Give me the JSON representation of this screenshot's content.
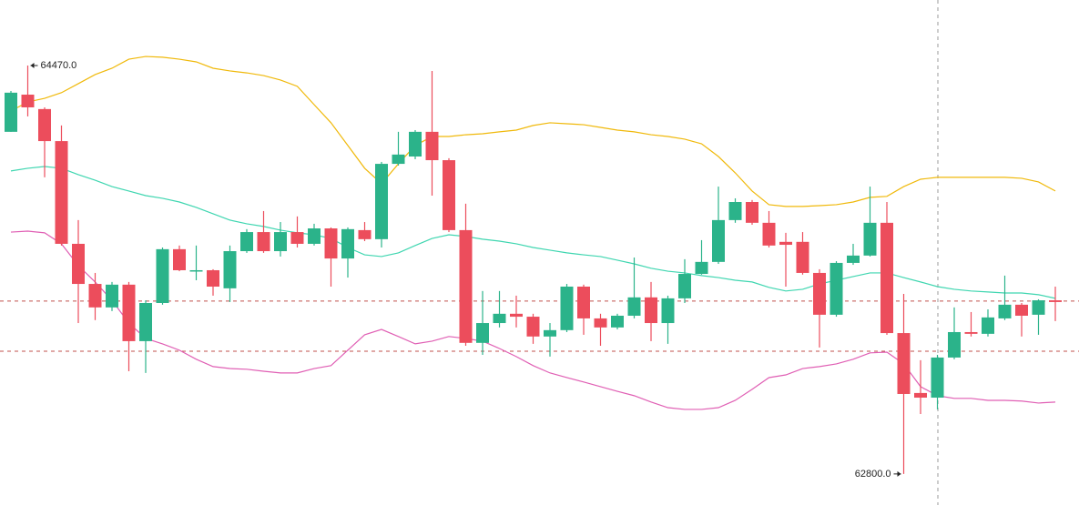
{
  "chart_data": {
    "type": "candlestick",
    "categories": [
      null,
      null,
      null,
      null,
      null,
      null,
      null,
      null,
      null,
      null,
      null,
      null,
      null,
      null,
      null,
      null,
      null,
      null,
      null,
      null,
      null,
      null,
      null,
      null,
      null,
      null,
      null,
      null,
      null,
      null,
      null,
      null,
      null,
      null,
      null,
      null,
      null,
      null,
      null,
      null,
      null,
      null,
      null,
      null,
      null,
      null,
      null,
      null,
      null,
      null,
      null,
      null,
      null,
      null,
      null,
      null,
      null,
      null,
      null,
      null,
      null,
      null,
      null
    ],
    "open": [
      64199,
      64351,
      64292,
      64161,
      63741,
      63577,
      63481,
      63574,
      63343,
      63499,
      63719,
      63629,
      63633,
      63559,
      63711,
      63789,
      63711,
      63789,
      63741,
      63804,
      63681,
      63797,
      63760,
      64068,
      64098,
      64199,
      64083,
      63797,
      63336,
      63417,
      63455,
      63443,
      63362,
      63388,
      63566,
      63436,
      63399,
      63447,
      63522,
      63417,
      63518,
      63618,
      63667,
      63838,
      63912,
      63827,
      63749,
      63749,
      63622,
      63451,
      63663,
      63693,
      63827,
      63376,
      63131,
      63112,
      63276,
      63380,
      63373,
      63436,
      63492,
      63451,
      63510
    ],
    "high": [
      64366,
      64470,
      64299,
      64225,
      63838,
      63622,
      63585,
      63585,
      63510,
      63726,
      63734,
      63734,
      63637,
      63734,
      63801,
      63875,
      63830,
      63853,
      63823,
      63808,
      63808,
      63830,
      64076,
      64199,
      64206,
      64448,
      64091,
      63905,
      63548,
      63548,
      63529,
      63455,
      63417,
      63577,
      63574,
      63455,
      63455,
      63685,
      63585,
      63529,
      63678,
      63756,
      63975,
      63927,
      63920,
      63875,
      63786,
      63789,
      63637,
      63670,
      63741,
      63975,
      63912,
      63536,
      63265,
      63287,
      63481,
      63462,
      63473,
      63611,
      63499,
      63514,
      63566
    ],
    "low": [
      64199,
      64262,
      64013,
      63734,
      63417,
      63429,
      63466,
      63220,
      63213,
      63492,
      63629,
      63592,
      63529,
      63503,
      63704,
      63704,
      63689,
      63726,
      63734,
      63566,
      63603,
      63752,
      63726,
      64061,
      64087,
      63938,
      63789,
      63324,
      63287,
      63399,
      63399,
      63332,
      63280,
      63380,
      63369,
      63324,
      63391,
      63436,
      63343,
      63332,
      63499,
      63615,
      63659,
      63827,
      63819,
      63726,
      63566,
      63615,
      63317,
      63443,
      63655,
      63689,
      63369,
      62800,
      63045,
      63064,
      63269,
      63362,
      63362,
      63429,
      63362,
      63369,
      63425
    ],
    "close": [
      64359,
      64299,
      64161,
      63741,
      63577,
      63481,
      63574,
      63343,
      63499,
      63719,
      63633,
      63633,
      63566,
      63711,
      63789,
      63711,
      63789,
      63741,
      63804,
      63681,
      63801,
      63760,
      64068,
      64106,
      64199,
      64083,
      63797,
      63336,
      63417,
      63455,
      63443,
      63362,
      63388,
      63566,
      63436,
      63399,
      63447,
      63522,
      63417,
      63518,
      63618,
      63667,
      63838,
      63912,
      63827,
      63734,
      63737,
      63622,
      63451,
      63663,
      63693,
      63827,
      63376,
      63127,
      63112,
      63276,
      63380,
      63373,
      63440,
      63492,
      63447,
      63510,
      63503
    ],
    "up_color": "#2bb38a",
    "down_color": "#ec4d5c",
    "bands": [
      {
        "color": "#f0b90b",
        "values": [
          64284,
          64321,
          64336,
          64359,
          64396,
          64433,
          64459,
          64496,
          64507,
          64504,
          64496,
          64485,
          64459,
          64448,
          64440,
          64429,
          64411,
          64385,
          64310,
          64236,
          64143,
          64050,
          63987,
          64068,
          64143,
          64180,
          64180,
          64187,
          64191,
          64199,
          64206,
          64225,
          64236,
          64232,
          64228,
          64217,
          64206,
          64199,
          64187,
          64180,
          64169,
          64150,
          64098,
          64031,
          63957,
          63901,
          63894,
          63894,
          63897,
          63901,
          63912,
          63931,
          63935,
          63975,
          64005,
          64013,
          64013,
          64013,
          64013,
          64013,
          64009,
          63994,
          63957
        ]
      },
      {
        "color": "#3fd6b0",
        "values": [
          64039,
          64050,
          64057,
          64050,
          64024,
          64001,
          63975,
          63957,
          63938,
          63927,
          63912,
          63890,
          63864,
          63838,
          63823,
          63812,
          63797,
          63786,
          63778,
          63763,
          63726,
          63696,
          63689,
          63704,
          63734,
          63763,
          63778,
          63771,
          63760,
          63752,
          63741,
          63726,
          63715,
          63704,
          63696,
          63689,
          63674,
          63659,
          63641,
          63629,
          63622,
          63611,
          63603,
          63592,
          63585,
          63563,
          63548,
          63555,
          63577,
          63592,
          63607,
          63622,
          63622,
          63603,
          63585,
          63566,
          63555,
          63548,
          63544,
          63540,
          63540,
          63533,
          63518
        ]
      },
      {
        "color": "#e05fb4",
        "values": [
          63789,
          63793,
          63786,
          63741,
          63652,
          63585,
          63510,
          63417,
          63354,
          63332,
          63306,
          63269,
          63239,
          63231,
          63228,
          63220,
          63213,
          63213,
          63231,
          63243,
          63306,
          63369,
          63391,
          63362,
          63332,
          63343,
          63362,
          63354,
          63343,
          63313,
          63280,
          63243,
          63213,
          63194,
          63176,
          63157,
          63138,
          63120,
          63094,
          63071,
          63064,
          63064,
          63071,
          63101,
          63146,
          63194,
          63205,
          63231,
          63239,
          63250,
          63269,
          63295,
          63298,
          63250,
          63157,
          63120,
          63109,
          63109,
          63101,
          63101,
          63098,
          63090,
          63094
        ]
      }
    ],
    "hlines": [
      63507,
      63302
    ],
    "hline_color": "#c0504d",
    "annotations": [
      {
        "value": 64470,
        "label": "64470.0"
      },
      {
        "value": 62800,
        "label": "62800.0"
      }
    ],
    "ylim": [
      62673,
      64738
    ]
  }
}
